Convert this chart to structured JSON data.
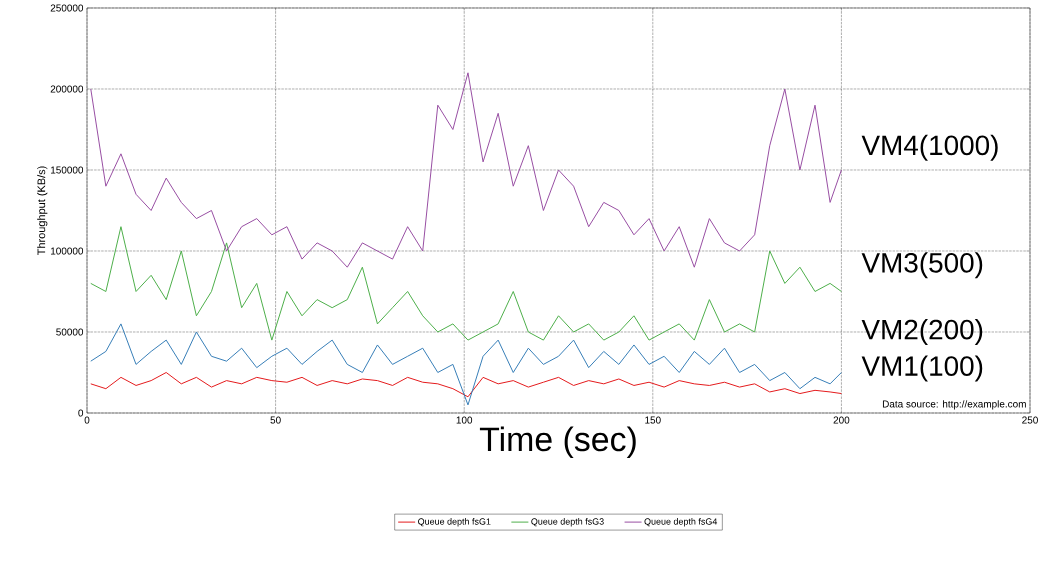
{
  "chart_data": {
    "type": "line",
    "xlabel": "Time (sec)",
    "ylabel": "Throughput (KB/s)",
    "x": [
      1,
      5,
      9,
      13,
      17,
      21,
      25,
      29,
      33,
      37,
      41,
      45,
      49,
      53,
      57,
      61,
      65,
      69,
      73,
      77,
      81,
      85,
      89,
      93,
      97,
      101,
      105,
      109,
      113,
      117,
      121,
      125,
      129,
      133,
      137,
      141,
      145,
      149,
      153,
      157,
      161,
      165,
      169,
      173,
      177,
      181,
      185,
      189,
      193,
      197,
      200
    ],
    "series": [
      {
        "name": "Queue depth fsG1",
        "color": "#e41a1c",
        "values": [
          18000,
          15000,
          22000,
          17000,
          20000,
          25000,
          18000,
          22000,
          16000,
          20000,
          18000,
          22000,
          20000,
          19000,
          22000,
          17000,
          20000,
          18000,
          21000,
          20000,
          17000,
          22000,
          19000,
          18000,
          15000,
          10000,
          22000,
          18000,
          20000,
          16000,
          19000,
          22000,
          17000,
          20000,
          18000,
          21000,
          17000,
          19000,
          16000,
          20000,
          18000,
          17000,
          19000,
          16000,
          18000,
          13000,
          15000,
          12000,
          14000,
          13000,
          12000
        ]
      },
      {
        "color": "#377eb8",
        "values": [
          32000,
          38000,
          55000,
          30000,
          38000,
          45000,
          30000,
          50000,
          35000,
          32000,
          40000,
          28000,
          35000,
          40000,
          30000,
          38000,
          45000,
          30000,
          25000,
          42000,
          30000,
          35000,
          40000,
          25000,
          30000,
          5000,
          35000,
          45000,
          25000,
          40000,
          30000,
          35000,
          45000,
          28000,
          38000,
          30000,
          42000,
          30000,
          35000,
          25000,
          38000,
          30000,
          40000,
          25000,
          30000,
          20000,
          25000,
          15000,
          22000,
          18000,
          25000
        ]
      },
      {
        "name": "Queue depth fsG3",
        "color": "#4daf4a",
        "values": [
          80000,
          75000,
          115000,
          75000,
          85000,
          70000,
          100000,
          60000,
          75000,
          105000,
          65000,
          80000,
          45000,
          75000,
          60000,
          70000,
          65000,
          70000,
          90000,
          55000,
          65000,
          75000,
          60000,
          50000,
          55000,
          45000,
          50000,
          55000,
          75000,
          50000,
          45000,
          60000,
          50000,
          55000,
          45000,
          50000,
          60000,
          45000,
          50000,
          55000,
          45000,
          70000,
          50000,
          55000,
          50000,
          100000,
          80000,
          90000,
          75000,
          80000,
          75000
        ]
      },
      {
        "name": "Queue depth fsG4",
        "color": "#984ea3",
        "values": [
          200000,
          140000,
          160000,
          135000,
          125000,
          145000,
          130000,
          120000,
          125000,
          100000,
          115000,
          120000,
          110000,
          115000,
          95000,
          105000,
          100000,
          90000,
          105000,
          100000,
          95000,
          115000,
          100000,
          190000,
          175000,
          210000,
          155000,
          185000,
          140000,
          165000,
          125000,
          150000,
          140000,
          115000,
          130000,
          125000,
          110000,
          120000,
          100000,
          115000,
          90000,
          120000,
          105000,
          100000,
          110000,
          165000,
          200000,
          150000,
          190000,
          130000,
          150000
        ]
      }
    ],
    "xlim": [
      0,
      250
    ],
    "ylim": [
      0,
      250000
    ],
    "xticks": [
      0,
      50,
      100,
      150,
      200,
      250
    ],
    "yticks": [
      0,
      50000,
      100000,
      150000,
      200000,
      250000
    ],
    "grid": true,
    "legend": "bottom",
    "marker": "none",
    "line_style": "solid",
    "annotations": [
      "VM4(1000)",
      "VM3(500)",
      "VM2(200)",
      "VM1(100)",
      "Data source: http://example.com"
    ]
  }
}
